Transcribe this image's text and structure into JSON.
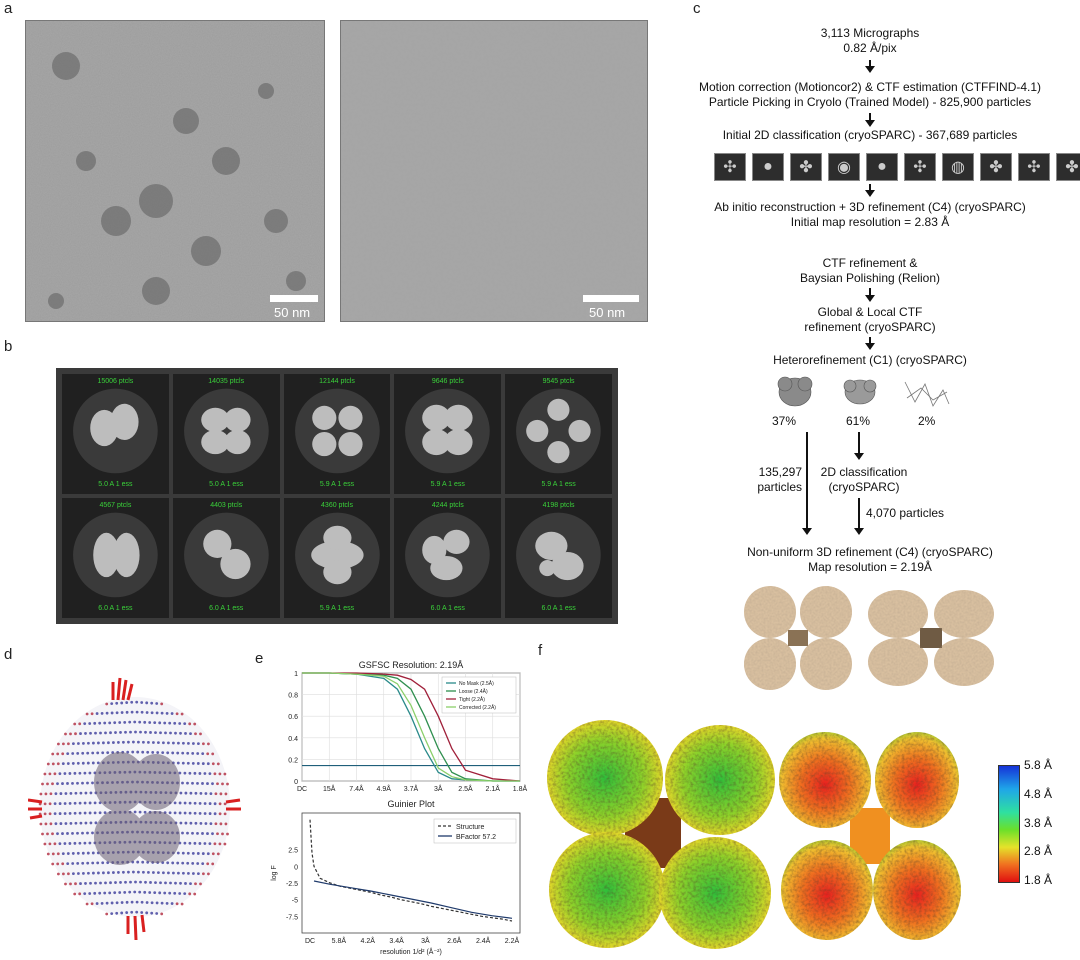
{
  "panels": {
    "a": "a",
    "b": "b",
    "c": "c",
    "d": "d",
    "e": "e",
    "f": "f"
  },
  "micrographs": [
    {
      "scale": "50 nm"
    },
    {
      "scale": "50 nm"
    }
  ],
  "classes": [
    {
      "count": "15006 ptcls",
      "res": "5.0 A 1 ess"
    },
    {
      "count": "14035 ptcls",
      "res": "5.0 A 1 ess"
    },
    {
      "count": "12144 ptcls",
      "res": "5.9 A 1 ess"
    },
    {
      "count": "9646 ptcls",
      "res": "5.9 A 1 ess"
    },
    {
      "count": "9545 ptcls",
      "res": "5.9 A 1 ess"
    },
    {
      "count": "4567 ptcls",
      "res": "6.0 A 1 ess"
    },
    {
      "count": "4403 ptcls",
      "res": "6.0 A 1 ess"
    },
    {
      "count": "4360 ptcls",
      "res": "5.9 A 1 ess"
    },
    {
      "count": "4244 ptcls",
      "res": "6.0 A 1 ess"
    },
    {
      "count": "4198 ptcls",
      "res": "6.0 A 1 ess"
    }
  ],
  "workflow": {
    "step1_l1": "3,113 Micrographs",
    "step1_l2": "0.82 Å/pix",
    "step2_l1": "Motion correction (Motioncor2) &  CTF estimation (CTFFIND-4.1)",
    "step2_l2": "Particle Picking in Cryolo (Trained Model) - 825,900 particles",
    "step3": "Initial 2D classification (cryoSPARC)  - 367,689 particles",
    "step4_l1": "Ab initio reconstruction + 3D refinement (C4) (cryoSPARC)",
    "step4_l2": "Initial map resolution = 2.83 Å",
    "step5_l1": "CTF refinement &",
    "step5_l2": "Baysian Polishing (Relion)",
    "step6_l1": "Global & Local CTF",
    "step6_l2": "refinement (cryoSPARC)",
    "step7": "Heterorefinement (C1) (cryoSPARC)",
    "pct1": "37%",
    "pct2": "61%",
    "pct3": "2%",
    "branch_left_l1": "135,297",
    "branch_left_l2": "particles",
    "branch_mid_l1": "2D classification",
    "branch_mid_l2": "(cryoSPARC)",
    "branch_right": "4,070 particles",
    "final_l1": "Non-uniform 3D refinement (C4) (cryoSPARC)",
    "final_l2": "Map resolution = 2.19Å"
  },
  "chart_data": [
    {
      "type": "line",
      "title": "GSFSC Resolution: 2.19Å",
      "x_tick_labels": [
        "DC",
        "15Å",
        "7.4Å",
        "4.9Å",
        "3.7Å",
        "3Å",
        "2.5Å",
        "2.1Å",
        "1.8Å"
      ],
      "y_ticks": [
        0.0,
        0.2,
        0.4,
        0.6,
        0.8,
        1.0
      ],
      "ylim": [
        0,
        1.0
      ],
      "threshold": 0.143,
      "legend": [
        "No Mask (2.5Å)",
        "Loose (2.4Å)",
        "Tight (2.2Å)",
        "Corrected (2.2Å)"
      ],
      "series": [
        {
          "name": "No Mask (2.5Å)",
          "color": "#2a8a8a",
          "x": [
            0,
            1,
            2,
            3,
            3.5,
            4,
            4.5,
            5,
            5.5,
            6,
            7,
            8
          ],
          "y": [
            1.0,
            1.0,
            0.99,
            0.95,
            0.85,
            0.6,
            0.3,
            0.08,
            0.02,
            0.01,
            0.0,
            0.0
          ]
        },
        {
          "name": "Loose (2.4Å)",
          "color": "#2f8f4f",
          "x": [
            0,
            1,
            2,
            3,
            3.5,
            4,
            4.5,
            5,
            5.5,
            6,
            7,
            8
          ],
          "y": [
            1.0,
            1.0,
            0.99,
            0.98,
            0.95,
            0.85,
            0.6,
            0.3,
            0.08,
            0.02,
            0.0,
            0.0
          ]
        },
        {
          "name": "Tight (2.2Å)",
          "color": "#a0203a",
          "x": [
            0,
            1,
            2,
            3,
            3.5,
            4,
            4.5,
            5,
            5.5,
            6,
            7,
            8
          ],
          "y": [
            1.0,
            1.0,
            1.0,
            0.99,
            0.98,
            0.94,
            0.85,
            0.6,
            0.3,
            0.1,
            0.02,
            0.0
          ]
        },
        {
          "name": "Corrected (2.2Å)",
          "color": "#8bcf6a",
          "x": [
            0,
            1,
            2,
            3,
            3.5,
            4,
            4.5,
            5,
            5.5,
            6,
            7,
            8
          ],
          "y": [
            1.0,
            1.0,
            0.99,
            0.97,
            0.9,
            0.7,
            0.4,
            0.12,
            0.04,
            0.01,
            0.0,
            0.0
          ]
        }
      ]
    },
    {
      "type": "line",
      "title": "Guinier Plot",
      "xlabel": "resolution 1/d² (Å⁻²)",
      "ylabel": "log F",
      "x_tick_labels": [
        "DC",
        "5.8Å",
        "4.2Å",
        "3.4Å",
        "3Å",
        "2.6Å",
        "2.4Å",
        "2.2Å"
      ],
      "y_ticks": [
        2.5,
        0.0,
        -2.5,
        -5.0,
        -7.5
      ],
      "ylim": [
        -10,
        8
      ],
      "legend": [
        "Structure",
        "BFactor 57.2"
      ],
      "series": [
        {
          "name": "Structure",
          "color": "#333333",
          "dashed": true,
          "x": [
            0,
            0.01,
            0.02,
            0.05,
            0.1,
            0.15,
            0.2,
            0.25,
            0.3,
            0.35,
            0.4,
            0.45,
            0.5,
            0.55,
            0.6,
            0.65,
            0.7,
            0.75,
            0.8,
            0.85,
            0.9,
            0.95,
            1.0
          ],
          "y": [
            7.0,
            2.0,
            0.0,
            -1.8,
            -2.5,
            -3.0,
            -3.3,
            -3.6,
            -3.9,
            -4.3,
            -4.6,
            -5.0,
            -5.3,
            -5.6,
            -6.0,
            -6.3,
            -6.6,
            -6.9,
            -7.2,
            -7.5,
            -7.7,
            -7.9,
            -8.2
          ]
        },
        {
          "name": "BFactor 57.2",
          "color": "#1f3a6b",
          "x": [
            0.02,
            0.1,
            0.2,
            0.3,
            0.4,
            0.5,
            0.6,
            0.7,
            0.8,
            0.9,
            1.0
          ],
          "y": [
            -2.2,
            -2.7,
            -3.2,
            -3.7,
            -4.3,
            -4.9,
            -5.5,
            -6.2,
            -6.9,
            -7.4,
            -7.8
          ]
        }
      ]
    }
  ],
  "colorbar": {
    "labels": [
      "5.8 Å",
      "4.8 Å",
      "3.8 Å",
      "2.8 Å",
      "1.8 Å"
    ]
  }
}
